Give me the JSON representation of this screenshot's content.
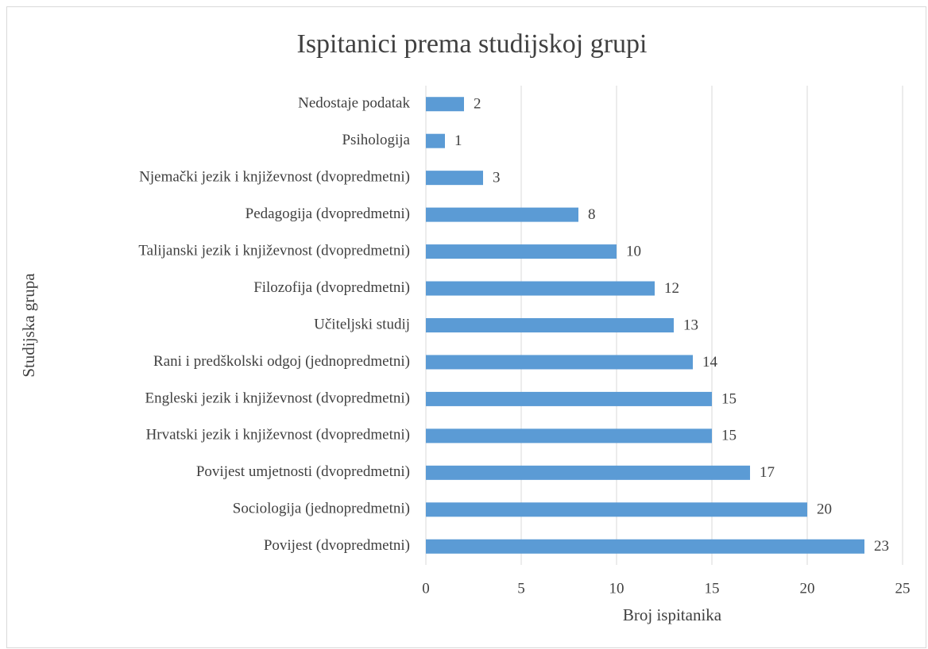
{
  "chart_data": {
    "type": "bar",
    "orientation": "horizontal",
    "title": "Ispitanici prema studijskoj grupi",
    "x_label": "Broj ispitanika",
    "y_label": "Studijska grupa",
    "categories": [
      "Nedostaje podatak",
      "Psihologija",
      "Njemački jezik i književnost (dvopredmetni)",
      "Pedagogija (dvopredmetni)",
      "Talijanski jezik i književnost (dvopredmetni)",
      "Filozofija (dvopredmetni)",
      "Učiteljski studij",
      "Rani i predškolski odgoj (jednopredmetni)",
      "Engleski jezik i književnost (dvopredmetni)",
      "Hrvatski jezik i književnost (dvopredmetni)",
      "Povijest umjetnosti (dvopredmetni)",
      "Sociologija (jednopredmetni)",
      "Povijest (dvopredmetni)"
    ],
    "values": [
      2,
      1,
      3,
      8,
      10,
      12,
      13,
      14,
      15,
      15,
      17,
      20,
      23
    ],
    "color": "#5b9bd5",
    "xlim": [
      0,
      25
    ],
    "xticks": [
      0,
      5,
      10,
      15,
      20,
      25
    ],
    "grid": true
  }
}
